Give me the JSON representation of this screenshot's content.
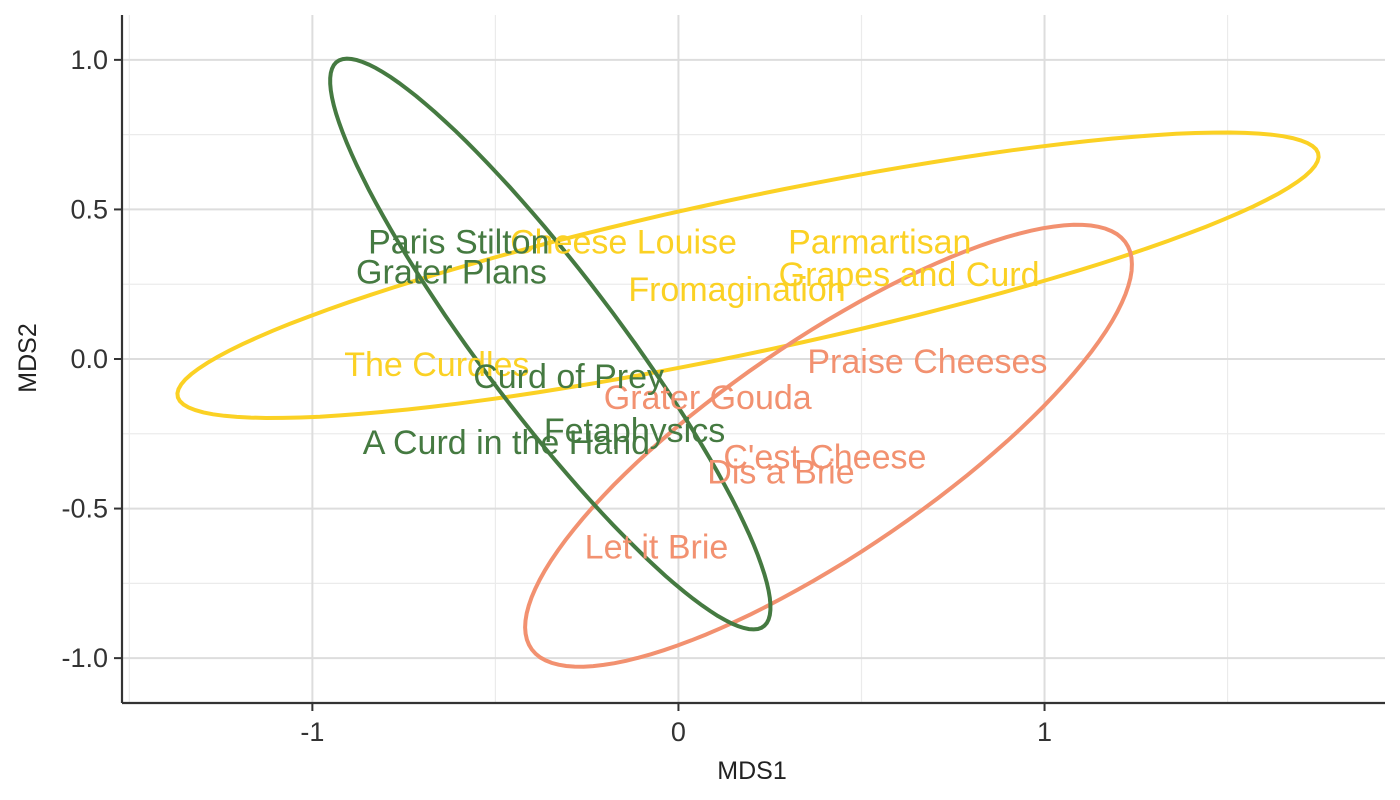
{
  "chart_data": {
    "type": "scatter",
    "title": "",
    "xlabel": "MDS1",
    "ylabel": "MDS2",
    "xlim": [
      -1.52,
      1.93
    ],
    "ylim": [
      -1.15,
      1.15
    ],
    "x_ticks": [
      {
        "value": -1,
        "label": "-1"
      },
      {
        "value": 0,
        "label": "0"
      },
      {
        "value": 1,
        "label": "1"
      }
    ],
    "x_minor": [
      -1.5,
      -0.5,
      0.5,
      1.5
    ],
    "y_ticks": [
      {
        "value": -1.0,
        "label": "-1.0"
      },
      {
        "value": -0.5,
        "label": "-0.5"
      },
      {
        "value": 0.0,
        "label": "0.0"
      },
      {
        "value": 0.5,
        "label": "0.5"
      },
      {
        "value": 1.0,
        "label": "1.0"
      }
    ],
    "y_minor": [
      -0.75,
      -0.25,
      0.25,
      0.75
    ],
    "grid": true,
    "legend": "none",
    "groups": [
      {
        "color": "#fbd124",
        "points": [
          {
            "label": "Cheese Louise",
            "x": -0.15,
            "y": 0.39
          },
          {
            "label": "Parmartisan",
            "x": 0.55,
            "y": 0.39
          },
          {
            "label": "Grapes and Curd",
            "x": 0.63,
            "y": 0.28
          },
          {
            "label": "Fromagination",
            "x": 0.16,
            "y": 0.23
          },
          {
            "label": "The Curdles",
            "x": -0.66,
            "y": -0.02
          }
        ],
        "ellipse": {
          "cx": 0.19,
          "cy": 0.28,
          "rx": 1.61,
          "ry": 0.255,
          "angle_deg": 14.7
        }
      },
      {
        "color": "#f29170",
        "points": [
          {
            "label": "Praise Cheeses",
            "x": 0.68,
            "y": -0.01
          },
          {
            "label": "Grater Gouda",
            "x": 0.08,
            "y": -0.13
          },
          {
            "label": "C'est Cheese",
            "x": 0.4,
            "y": -0.33
          },
          {
            "label": "Dis a Brie",
            "x": 0.28,
            "y": -0.38
          },
          {
            "label": "Let it Brie",
            "x": -0.06,
            "y": -0.63
          }
        ],
        "ellipse": {
          "cx": 0.41,
          "cy": -0.29,
          "rx": 1.06,
          "ry": 0.33,
          "angle_deg": 41
        }
      },
      {
        "color": "#457a41",
        "points": [
          {
            "label": "Paris Stilton",
            "x": -0.6,
            "y": 0.39
          },
          {
            "label": "Grater Plans",
            "x": -0.62,
            "y": 0.29
          },
          {
            "label": "Curd of Prey",
            "x": -0.3,
            "y": -0.06
          },
          {
            "label": "Fetaphysics",
            "x": -0.12,
            "y": -0.24
          },
          {
            "label": "A Curd in the Hand",
            "x": -0.47,
            "y": -0.28
          }
        ],
        "ellipse": {
          "cx": -0.35,
          "cy": 0.05,
          "rx": 1.11,
          "ry": 0.2,
          "angle_deg": -58.7
        }
      }
    ]
  }
}
